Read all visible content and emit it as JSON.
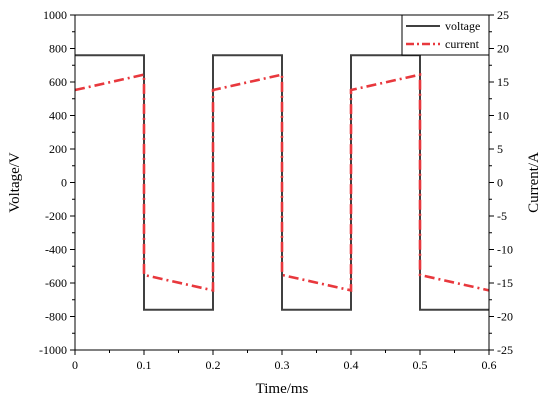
{
  "chart_data": {
    "type": "line",
    "xlabel": "Time/ms",
    "ylabel_left": "Voltage/V",
    "ylabel_right": "Current/A",
    "xlim": [
      0,
      0.6
    ],
    "ylim_left": [
      -1000,
      1000
    ],
    "ylim_right": [
      -25,
      25
    ],
    "x_ticks": [
      "0",
      "0.1",
      "0.2",
      "0.3",
      "0.4",
      "0.5",
      "0.6"
    ],
    "y_left_ticks": [
      "-1000",
      "-800",
      "-600",
      "-400",
      "-200",
      "0",
      "200",
      "400",
      "600",
      "800",
      "1000"
    ],
    "y_right_ticks": [
      "-25",
      "-20",
      "-15",
      "-10",
      "-5",
      "0",
      "5",
      "10",
      "15",
      "20",
      "25"
    ],
    "grid": false,
    "legend_position": "top-right",
    "series": [
      {
        "name": "voltage",
        "axis": "left",
        "color": "#404040",
        "style": "solid",
        "x": [
          0,
          0.1,
          0.1,
          0.2,
          0.2,
          0.3,
          0.3,
          0.4,
          0.4,
          0.5,
          0.5,
          0.6
        ],
        "y": [
          760,
          760,
          -760,
          -760,
          760,
          760,
          -760,
          -760,
          760,
          760,
          -760,
          -760
        ]
      },
      {
        "name": "current",
        "axis": "right",
        "color": "#e8383d",
        "style": "dashdot",
        "x": [
          0,
          0.1,
          0.1,
          0.2,
          0.2,
          0.3,
          0.3,
          0.4,
          0.4,
          0.5,
          0.5,
          0.6
        ],
        "y": [
          13.8,
          16.1,
          -13.8,
          -16.1,
          13.8,
          16.1,
          -13.8,
          -16.1,
          13.8,
          16.1,
          -13.8,
          -16.1
        ]
      }
    ]
  }
}
